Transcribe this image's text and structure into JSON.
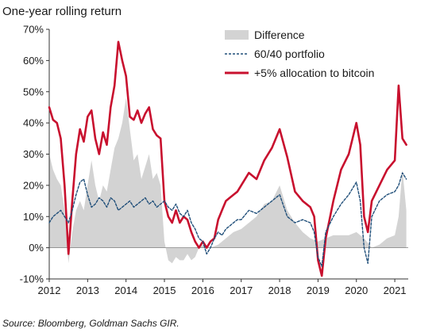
{
  "chart_data": {
    "type": "line",
    "title": "One-year rolling return",
    "source": "Source: Bloomberg, Goldman Sachs GIR.",
    "ylim": [
      -10,
      70
    ],
    "xlim": [
      2012.0,
      2021.35
    ],
    "y_ticks": [
      -10,
      0,
      10,
      20,
      30,
      40,
      50,
      60,
      70
    ],
    "y_tick_labels": [
      "-10%",
      "0%",
      "10%",
      "20%",
      "30%",
      "40%",
      "50%",
      "60%",
      "70%"
    ],
    "x_ticks": [
      2012,
      2013,
      2014,
      2015,
      2016,
      2017,
      2018,
      2019,
      2020,
      2021
    ],
    "x_tick_labels": [
      "2012",
      "2013",
      "2014",
      "2015",
      "2016",
      "2017",
      "2018",
      "2019",
      "2020",
      "2021"
    ],
    "grid": false,
    "legend_position": "top-right",
    "colors": {
      "difference": "#d3d3d3",
      "portfolio": "#1f4e79",
      "bitcoin": "#c8102e"
    },
    "series": [
      {
        "name": "Difference",
        "style": "area",
        "x": [
          2012.0,
          2012.1,
          2012.2,
          2012.3,
          2012.4,
          2012.5,
          2012.6,
          2012.7,
          2012.8,
          2012.9,
          2013.0,
          2013.1,
          2013.2,
          2013.3,
          2013.4,
          2013.5,
          2013.6,
          2013.7,
          2013.8,
          2013.9,
          2014.0,
          2014.1,
          2014.2,
          2014.3,
          2014.4,
          2014.5,
          2014.6,
          2014.7,
          2014.8,
          2014.9,
          2015.0,
          2015.1,
          2015.2,
          2015.3,
          2015.4,
          2015.5,
          2015.6,
          2015.7,
          2015.8,
          2015.9,
          2016.0,
          2016.2,
          2016.4,
          2016.6,
          2016.8,
          2017.0,
          2017.2,
          2017.4,
          2017.6,
          2017.8,
          2018.0,
          2018.2,
          2018.4,
          2018.6,
          2018.8,
          2019.0,
          2019.2,
          2019.4,
          2019.6,
          2019.8,
          2020.0,
          2020.2,
          2020.4,
          2020.6,
          2020.8,
          2021.0,
          2021.1,
          2021.2,
          2021.3
        ],
        "values": [
          30,
          25,
          22,
          20,
          12,
          -5,
          5,
          12,
          15,
          12,
          20,
          28,
          20,
          15,
          20,
          18,
          25,
          32,
          35,
          40,
          48,
          38,
          28,
          30,
          22,
          26,
          30,
          22,
          24,
          20,
          2,
          -4,
          -5,
          -3,
          -4,
          -4,
          -2,
          -4,
          -3,
          0,
          1,
          0,
          1,
          3,
          5,
          6,
          8,
          10,
          14,
          15,
          20,
          12,
          8,
          5,
          3,
          2,
          3,
          4,
          4,
          4,
          5,
          3,
          0,
          1,
          3,
          4,
          10,
          25,
          12
        ]
      },
      {
        "name": "60/40 portfolio",
        "style": "dashed",
        "x": [
          2012.0,
          2012.1,
          2012.2,
          2012.3,
          2012.4,
          2012.5,
          2012.6,
          2012.7,
          2012.8,
          2012.9,
          2013.0,
          2013.1,
          2013.2,
          2013.3,
          2013.4,
          2013.5,
          2013.6,
          2013.7,
          2013.8,
          2013.9,
          2014.0,
          2014.1,
          2014.2,
          2014.3,
          2014.4,
          2014.5,
          2014.6,
          2014.7,
          2014.8,
          2014.9,
          2015.0,
          2015.1,
          2015.2,
          2015.3,
          2015.4,
          2015.5,
          2015.6,
          2015.7,
          2015.8,
          2015.9,
          2016.0,
          2016.1,
          2016.2,
          2016.3,
          2016.4,
          2016.5,
          2016.6,
          2016.7,
          2016.8,
          2016.9,
          2017.0,
          2017.2,
          2017.4,
          2017.6,
          2017.8,
          2018.0,
          2018.2,
          2018.4,
          2018.6,
          2018.8,
          2018.9,
          2019.0,
          2019.1,
          2019.2,
          2019.4,
          2019.6,
          2019.8,
          2020.0,
          2020.1,
          2020.2,
          2020.3,
          2020.4,
          2020.6,
          2020.8,
          2021.0,
          2021.1,
          2021.2,
          2021.3
        ],
        "values": [
          8,
          10,
          11,
          12,
          10,
          8,
          12,
          17,
          21,
          22,
          17,
          13,
          14,
          16,
          15,
          13,
          16,
          15,
          12,
          13,
          14,
          15,
          13,
          14,
          15,
          16,
          14,
          15,
          13,
          14,
          15,
          13,
          12,
          14,
          11,
          10,
          12,
          8,
          6,
          3,
          2,
          -2,
          0,
          3,
          5,
          4,
          6,
          7,
          8,
          9,
          9,
          12,
          11,
          13,
          15,
          17,
          10,
          8,
          9,
          8,
          5,
          -3,
          -6,
          5,
          10,
          14,
          17,
          21,
          15,
          0,
          -5,
          10,
          15,
          17,
          18,
          20,
          24,
          22
        ]
      },
      {
        "name": "+5% allocation to bitcoin",
        "style": "solid",
        "x": [
          2012.0,
          2012.1,
          2012.2,
          2012.3,
          2012.4,
          2012.5,
          2012.6,
          2012.7,
          2012.8,
          2012.9,
          2013.0,
          2013.1,
          2013.2,
          2013.3,
          2013.4,
          2013.5,
          2013.6,
          2013.7,
          2013.8,
          2013.9,
          2014.0,
          2014.1,
          2014.2,
          2014.3,
          2014.4,
          2014.5,
          2014.6,
          2014.7,
          2014.8,
          2014.9,
          2015.0,
          2015.1,
          2015.2,
          2015.3,
          2015.4,
          2015.5,
          2015.6,
          2015.7,
          2015.8,
          2015.9,
          2016.0,
          2016.1,
          2016.2,
          2016.3,
          2016.4,
          2016.5,
          2016.6,
          2016.7,
          2016.8,
          2016.9,
          2017.0,
          2017.2,
          2017.4,
          2017.6,
          2017.8,
          2018.0,
          2018.2,
          2018.4,
          2018.6,
          2018.8,
          2018.9,
          2019.0,
          2019.1,
          2019.2,
          2019.4,
          2019.6,
          2019.8,
          2020.0,
          2020.1,
          2020.2,
          2020.3,
          2020.4,
          2020.6,
          2020.8,
          2021.0,
          2021.1,
          2021.2,
          2021.3
        ],
        "values": [
          45,
          41,
          40,
          35,
          20,
          -2,
          15,
          30,
          38,
          34,
          42,
          44,
          35,
          30,
          37,
          33,
          45,
          52,
          66,
          60,
          55,
          42,
          41,
          44,
          40,
          43,
          45,
          38,
          36,
          35,
          15,
          10,
          8,
          12,
          8,
          10,
          9,
          5,
          2,
          0,
          2,
          0,
          2,
          3,
          9,
          12,
          15,
          16,
          17,
          18,
          20,
          24,
          22,
          28,
          32,
          38,
          29,
          18,
          15,
          13,
          10,
          -4,
          -9,
          3,
          15,
          25,
          30,
          40,
          33,
          10,
          5,
          15,
          20,
          25,
          28,
          52,
          35,
          33
        ]
      }
    ]
  }
}
